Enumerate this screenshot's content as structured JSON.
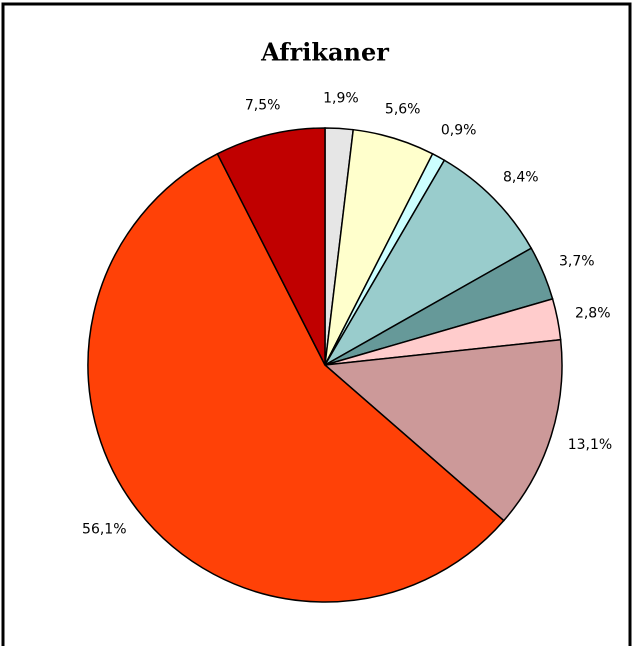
{
  "chart_data": {
    "type": "pie",
    "title": "Afrikaner",
    "values": [
      1.9,
      5.6,
      0.9,
      8.4,
      3.7,
      2.8,
      13.1,
      56.1,
      7.5
    ],
    "value_labels": [
      "1,9%",
      "5,6%",
      "0,9%",
      "8,4%",
      "3,7%",
      "2,8%",
      "13,1%",
      "56,1%",
      "7,5%"
    ],
    "colors": [
      "#e6e6e6",
      "#ffffcc",
      "#ccffff",
      "#99cccc",
      "#669999",
      "#ffcccc",
      "#cc9999",
      "#ff4107",
      "#c00000"
    ]
  }
}
